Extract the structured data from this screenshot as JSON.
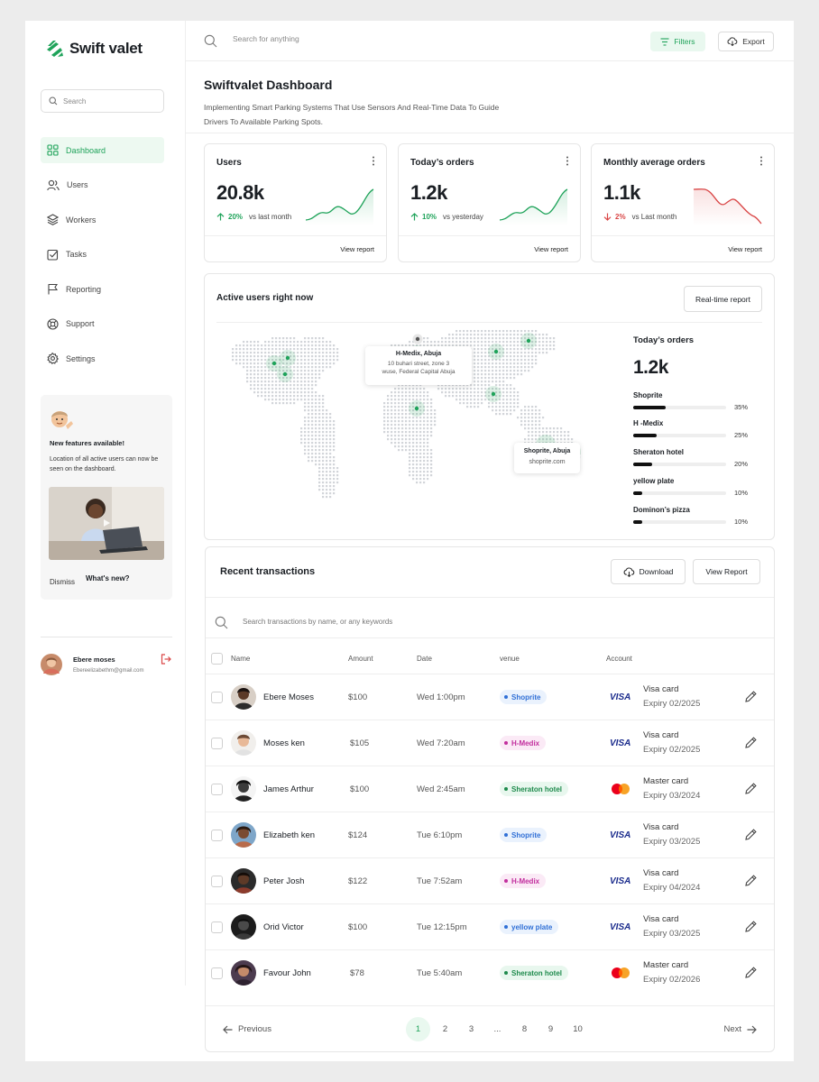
{
  "brand": {
    "name": "Swift valet"
  },
  "sidebar": {
    "search_placeholder": "Search",
    "items": [
      {
        "label": "Dashboard",
        "icon": "grid-icon",
        "active": true
      },
      {
        "label": "Users",
        "icon": "users-icon"
      },
      {
        "label": "Workers",
        "icon": "layers-icon"
      },
      {
        "label": "Tasks",
        "icon": "checkbox-icon"
      },
      {
        "label": "Reporting",
        "icon": "flag-icon"
      },
      {
        "label": "Support",
        "icon": "lifebuoy-icon"
      },
      {
        "label": "Settings",
        "icon": "gear-icon"
      }
    ],
    "promo": {
      "title": "New features available!",
      "text": "Location of all active users can now be seen on the dashboard.",
      "dismiss": "Dismiss",
      "whats_new": "What's new?"
    },
    "user": {
      "name": "Ebere moses",
      "email": "Ebereelizabethm@gmail.com"
    }
  },
  "topbar": {
    "search_placeholder": "Search for anything",
    "filters": "Filters",
    "export": "Export"
  },
  "header": {
    "title": "Swiftvalet Dashboard",
    "subtitle": "Implementing Smart Parking Systems That Use Sensors And Real-Time Data To Guide Drivers To Available Parking Spots."
  },
  "stats": [
    {
      "title": "Users",
      "value": "20.8k",
      "pct": "20%",
      "trend": "up",
      "vs": "vs last month",
      "link": "View report"
    },
    {
      "title": "Today’s orders",
      "value": "1.2k",
      "pct": "10%",
      "trend": "up",
      "vs": "vs yesterday",
      "link": "View report"
    },
    {
      "title": "Monthly average orders",
      "value": "1.1k",
      "pct": "2%",
      "trend": "down",
      "vs": "vs Last month",
      "link": "View report"
    }
  ],
  "colors": {
    "accent": "#1fa35a",
    "accent_light": "#e9f8ef",
    "danger": "#d94545"
  },
  "active_users": {
    "title": "Active users right now",
    "realtime_button": "Real-time report",
    "tooltip1": {
      "title": "H-Medix, Abuja",
      "line1": "10 buhari street, zone 3",
      "line2": "wuse, Federal Capital Abuja"
    },
    "tooltip2": {
      "title": "Shoprite, Abuja",
      "line1": "shoprite.com"
    },
    "orders_title": "Today’s orders",
    "orders_value": "1.2k",
    "venues": [
      {
        "name": "Shoprite",
        "pct": "35%",
        "value": 0.35
      },
      {
        "name": "H -Medix",
        "pct": "25%",
        "value": 0.25
      },
      {
        "name": "Sheraton hotel",
        "pct": "20%",
        "value": 0.2
      },
      {
        "name": "yellow plate",
        "pct": "10%",
        "value": 0.1
      },
      {
        "name": "Dominon’s pizza",
        "pct": "10%",
        "value": 0.1
      }
    ]
  },
  "transactions": {
    "title": "Recent transactions",
    "download": "Download",
    "view_report": "View Report",
    "search_placeholder": "Search transactions by name, or any keywords",
    "headers": {
      "name": "Name",
      "amount": "Amount",
      "date": "Date",
      "venue": "venue",
      "account": "Account"
    },
    "rows": [
      {
        "name": "Ebere Moses",
        "amount": "$100",
        "date": "Wed 1:00pm",
        "venue": "Shoprite",
        "venue_color": "#2f6fd6",
        "venue_bg": "#eaf2fd",
        "card": "Visa card",
        "card_type": "visa",
        "expiry": "Expiry 02/2025"
      },
      {
        "name": "Moses ken",
        "amount": "$105",
        "date": "Wed 7:20am",
        "venue": "H-Medix",
        "venue_color": "#c22e9e",
        "venue_bg": "#fbeaf6",
        "card": "Visa card",
        "card_type": "visa",
        "expiry": "Expiry 02/2025"
      },
      {
        "name": "James Arthur",
        "amount": "$100",
        "date": "Wed 2:45am",
        "venue": "Sheraton hotel",
        "venue_color": "#1e8a4c",
        "venue_bg": "#e8f7ee",
        "card": "Master card",
        "card_type": "master",
        "expiry": "Expiry 03/2024"
      },
      {
        "name": "Elizabeth ken",
        "amount": "$124",
        "date": "Tue 6:10pm",
        "venue": "Shoprite",
        "venue_color": "#2f6fd6",
        "venue_bg": "#eaf2fd",
        "card": "Visa card",
        "card_type": "visa",
        "expiry": "Expiry 03/2025"
      },
      {
        "name": "Peter Josh",
        "amount": "$122",
        "date": "Tue 7:52am",
        "venue": "H-Medix",
        "venue_color": "#c22e9e",
        "venue_bg": "#fbeaf6",
        "card": "Visa card",
        "card_type": "visa",
        "expiry": "Expiry 04/2024"
      },
      {
        "name": "Orid Victor",
        "amount": "$100",
        "date": "Tue 12:15pm",
        "venue": "yellow plate",
        "venue_color": "#2f6fd6",
        "venue_bg": "#eaf2fd",
        "card": "Visa card",
        "card_type": "visa",
        "expiry": "Expiry 03/2025"
      },
      {
        "name": "Favour John",
        "amount": "$78",
        "date": "Tue 5:40am",
        "venue": "Sheraton hotel",
        "venue_color": "#1e8a4c",
        "venue_bg": "#e8f7ee",
        "card": "Master card",
        "card_type": "master",
        "expiry": "Expiry 02/2026"
      }
    ],
    "pagination": {
      "previous": "Previous",
      "next": "Next",
      "pages": [
        "1",
        "2",
        "3",
        "...",
        "8",
        "9",
        "10"
      ],
      "current": "1"
    }
  }
}
